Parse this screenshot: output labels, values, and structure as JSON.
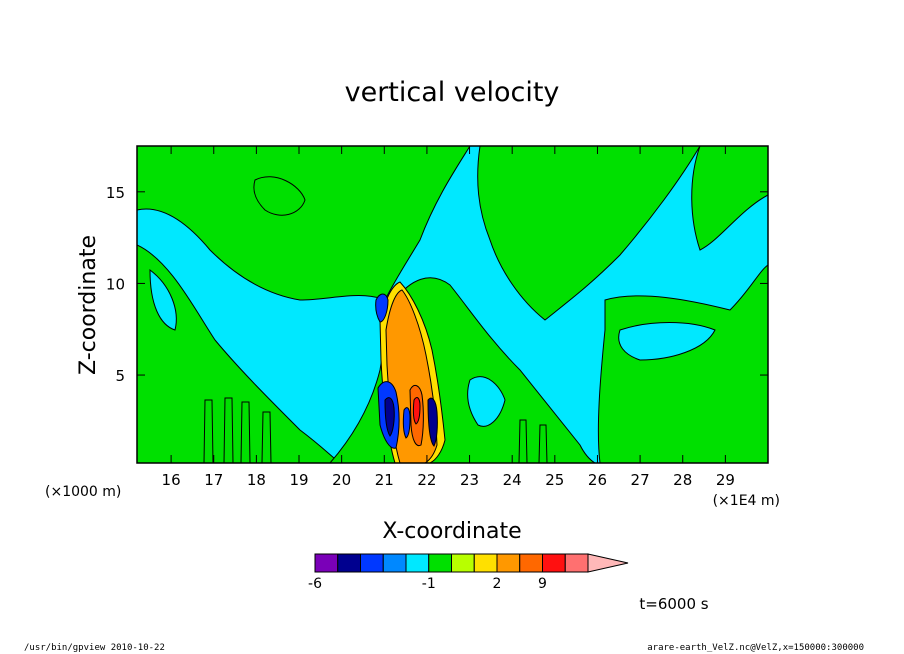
{
  "chart_data": {
    "type": "heatmap",
    "title": "vertical velocity",
    "xlabel": "X-coordinate",
    "ylabel": "Z-coordinate",
    "x_unit_label": "(×1E4 m)",
    "y_unit_label": "(×1000 m)",
    "xlim": [
      15.2,
      30.0
    ],
    "ylim": [
      0.2,
      17.5
    ],
    "x_ticks": [
      16,
      17,
      18,
      19,
      20,
      21,
      22,
      23,
      24,
      25,
      26,
      27,
      28,
      29
    ],
    "y_ticks": [
      5,
      10,
      15
    ],
    "grid": false,
    "colorbar": {
      "boundaries": [
        -6,
        -5,
        -4,
        -3,
        -2,
        -1,
        0,
        1,
        2,
        3,
        9,
        10,
        11,
        12
      ],
      "labels": [
        -6,
        -1,
        2,
        9
      ],
      "colors": [
        "#7a00b8",
        "#00008f",
        "#0038ff",
        "#0088ff",
        "#00e8ff",
        "#00e000",
        "#b8ff00",
        "#ffe000",
        "#ff9800",
        "#ff6800",
        "#ff1010",
        "#ff7070",
        "#ffb8b8"
      ],
      "extend": "max"
    },
    "fill_colors": {
      "background": "#00e8ff",
      "positive_weak": "#00e000",
      "updraft_core": "#ff9800",
      "downdraft": "#0038ff"
    }
  },
  "annotation_time": "t=6000 s",
  "footer_left": "/usr/bin/gpview   2010-10-22",
  "footer_right": "arare-earth_VelZ.nc@VelZ,x=150000:300000"
}
